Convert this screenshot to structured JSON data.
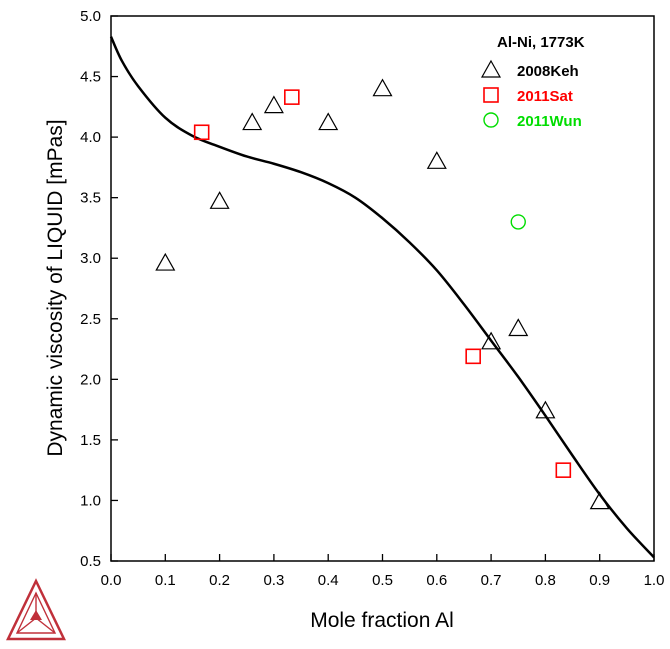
{
  "chart_data": {
    "type": "scatter",
    "xlabel": "Mole fraction Al",
    "ylabel": "Dynamic viscosity of LIQUID [mPas]",
    "xlim": [
      0.0,
      1.0
    ],
    "ylim": [
      0.5,
      5.0
    ],
    "xticks": [
      "0.0",
      "0.1",
      "0.2",
      "0.3",
      "0.4",
      "0.5",
      "0.6",
      "0.7",
      "0.8",
      "0.9",
      "1.0"
    ],
    "yticks": [
      "0.5",
      "1.0",
      "1.5",
      "2.0",
      "2.5",
      "3.0",
      "3.5",
      "4.0",
      "4.5",
      "5.0"
    ],
    "grid": false,
    "legend_position": "top-right",
    "legend_title": "Al-Ni, 1773K",
    "series": [
      {
        "name": "2008Keh",
        "marker": "triangle",
        "color": "#000000",
        "points": [
          [
            0.1,
            2.96
          ],
          [
            0.2,
            3.47
          ],
          [
            0.26,
            4.12
          ],
          [
            0.3,
            4.26
          ],
          [
            0.4,
            4.12
          ],
          [
            0.5,
            4.4
          ],
          [
            0.6,
            3.8
          ],
          [
            0.7,
            2.31
          ],
          [
            0.75,
            2.42
          ],
          [
            0.8,
            1.74
          ],
          [
            0.9,
            0.99
          ]
        ]
      },
      {
        "name": "2011Sat",
        "marker": "square",
        "color": "#ff0000",
        "points": [
          [
            0.167,
            4.04
          ],
          [
            0.333,
            4.33
          ],
          [
            0.667,
            2.19
          ],
          [
            0.833,
            1.25
          ]
        ]
      },
      {
        "name": "2011Wun",
        "marker": "circle",
        "color": "#00dd00",
        "points": [
          [
            0.75,
            3.3
          ]
        ]
      }
    ],
    "curve": {
      "color": "#000000",
      "points": [
        [
          0.0,
          4.83
        ],
        [
          0.02,
          4.63
        ],
        [
          0.05,
          4.42
        ],
        [
          0.1,
          4.16
        ],
        [
          0.15,
          4.01
        ],
        [
          0.2,
          3.92
        ],
        [
          0.25,
          3.84
        ],
        [
          0.3,
          3.78
        ],
        [
          0.35,
          3.71
        ],
        [
          0.4,
          3.62
        ],
        [
          0.45,
          3.5
        ],
        [
          0.5,
          3.33
        ],
        [
          0.55,
          3.13
        ],
        [
          0.6,
          2.9
        ],
        [
          0.65,
          2.62
        ],
        [
          0.7,
          2.32
        ],
        [
          0.75,
          2.02
        ],
        [
          0.8,
          1.7
        ],
        [
          0.85,
          1.37
        ],
        [
          0.9,
          1.05
        ],
        [
          0.95,
          0.77
        ],
        [
          1.0,
          0.53
        ]
      ]
    }
  },
  "logo": {
    "color": "#c0303a",
    "icon": "thermo-calc-triangle-logo"
  }
}
